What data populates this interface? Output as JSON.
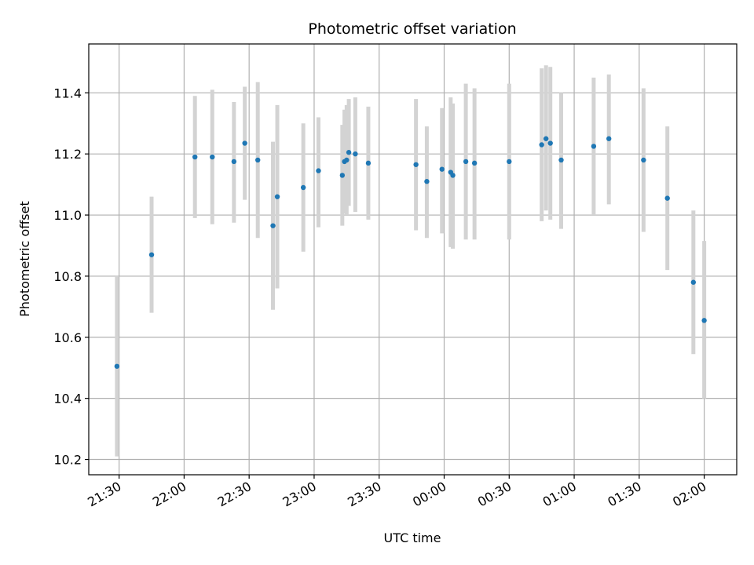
{
  "chart_data": {
    "type": "scatter",
    "title": "Photometric offset variation",
    "xlabel": "UTC time",
    "ylabel": "Photometric offset",
    "x_tick_labels": [
      "21:30",
      "22:00",
      "22:30",
      "23:00",
      "23:30",
      "00:00",
      "00:30",
      "01:00",
      "01:30",
      "02:00"
    ],
    "y_tick_labels": [
      "10.2",
      "10.4",
      "10.6",
      "10.8",
      "11.0",
      "11.2",
      "11.4"
    ],
    "x_axis": {
      "start_time": "21:30",
      "end_time": "02:00",
      "xlim": [
        "21:16",
        "02:15"
      ]
    },
    "ylim": [
      10.15,
      11.56
    ],
    "grid": true,
    "colors": {
      "point": "#1f77b4",
      "errorbar": "#d3d3d3",
      "grid": "#b0b0b0"
    },
    "points": [
      {
        "t": "21:29",
        "y": 10.505,
        "lo": 10.21,
        "hi": 10.8
      },
      {
        "t": "21:45",
        "y": 10.87,
        "lo": 10.68,
        "hi": 11.06
      },
      {
        "t": "22:05",
        "y": 11.19,
        "lo": 10.99,
        "hi": 11.39
      },
      {
        "t": "22:13",
        "y": 11.19,
        "lo": 10.97,
        "hi": 11.41
      },
      {
        "t": "22:23",
        "y": 11.175,
        "lo": 10.975,
        "hi": 11.37
      },
      {
        "t": "22:28",
        "y": 11.235,
        "lo": 11.05,
        "hi": 11.42
      },
      {
        "t": "22:34",
        "y": 11.18,
        "lo": 10.925,
        "hi": 11.435
      },
      {
        "t": "22:41",
        "y": 10.965,
        "lo": 10.69,
        "hi": 11.24
      },
      {
        "t": "22:43",
        "y": 11.06,
        "lo": 10.76,
        "hi": 11.36
      },
      {
        "t": "22:55",
        "y": 11.09,
        "lo": 10.88,
        "hi": 11.3
      },
      {
        "t": "23:02",
        "y": 11.145,
        "lo": 10.96,
        "hi": 11.32
      },
      {
        "t": "23:13",
        "y": 11.13,
        "lo": 10.965,
        "hi": 11.295
      },
      {
        "t": "23:14",
        "y": 11.175,
        "lo": 11.005,
        "hi": 11.345
      },
      {
        "t": "23:15",
        "y": 11.18,
        "lo": 11.0,
        "hi": 11.36
      },
      {
        "t": "23:16",
        "y": 11.205,
        "lo": 11.03,
        "hi": 11.38
      },
      {
        "t": "23:19",
        "y": 11.2,
        "lo": 11.01,
        "hi": 11.385
      },
      {
        "t": "23:25",
        "y": 11.17,
        "lo": 10.985,
        "hi": 11.355
      },
      {
        "t": "23:47",
        "y": 11.165,
        "lo": 10.95,
        "hi": 11.38
      },
      {
        "t": "23:52",
        "y": 11.11,
        "lo": 10.925,
        "hi": 11.29
      },
      {
        "t": "23:59",
        "y": 11.15,
        "lo": 10.94,
        "hi": 11.35
      },
      {
        "t": "00:03",
        "y": 11.14,
        "lo": 10.895,
        "hi": 11.385
      },
      {
        "t": "00:04",
        "y": 11.13,
        "lo": 10.89,
        "hi": 11.365
      },
      {
        "t": "00:10",
        "y": 11.175,
        "lo": 10.92,
        "hi": 11.43
      },
      {
        "t": "00:14",
        "y": 11.17,
        "lo": 10.92,
        "hi": 11.415
      },
      {
        "t": "00:30",
        "y": 11.175,
        "lo": 10.92,
        "hi": 11.43
      },
      {
        "t": "00:45",
        "y": 11.23,
        "lo": 10.98,
        "hi": 11.48
      },
      {
        "t": "00:47",
        "y": 11.25,
        "lo": 11.015,
        "hi": 11.49
      },
      {
        "t": "00:49",
        "y": 11.235,
        "lo": 10.985,
        "hi": 11.485
      },
      {
        "t": "00:54",
        "y": 11.18,
        "lo": 10.955,
        "hi": 11.4
      },
      {
        "t": "01:09",
        "y": 11.225,
        "lo": 11.0,
        "hi": 11.45
      },
      {
        "t": "01:16",
        "y": 11.25,
        "lo": 11.035,
        "hi": 11.46
      },
      {
        "t": "01:32",
        "y": 11.18,
        "lo": 10.945,
        "hi": 11.415
      },
      {
        "t": "01:43",
        "y": 11.055,
        "lo": 10.82,
        "hi": 11.29
      },
      {
        "t": "01:55",
        "y": 10.78,
        "lo": 10.545,
        "hi": 11.015
      },
      {
        "t": "02:00",
        "y": 10.655,
        "lo": 10.4,
        "hi": 10.915
      }
    ]
  }
}
